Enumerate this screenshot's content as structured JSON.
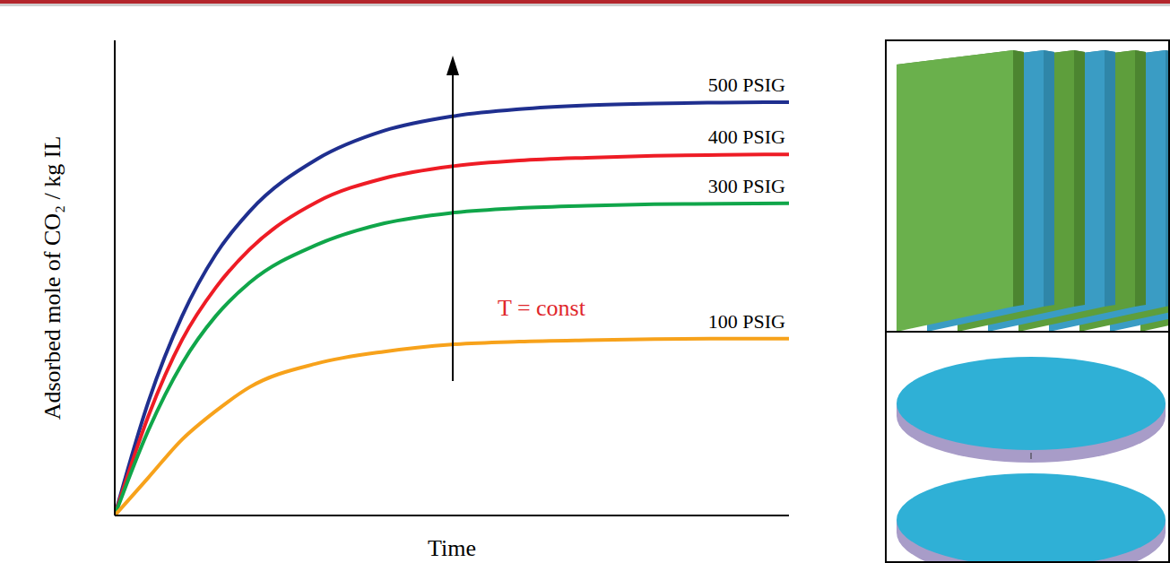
{
  "chart_data": {
    "type": "line",
    "x_label": "Time",
    "y_label": "Adsorbed mole of CO₂ / kg IL",
    "x": [
      0,
      0.5,
      1,
      1.5,
      2,
      3,
      4,
      5,
      6,
      7,
      8,
      9,
      10
    ],
    "series": [
      {
        "name": "500 PSIG",
        "color": "#1f2f8f",
        "values": [
          0,
          2.4,
          4.2,
          5.5,
          6.4,
          7.5,
          8.1,
          8.4,
          8.55,
          8.63,
          8.67,
          8.69,
          8.7
        ]
      },
      {
        "name": "400 PSIG",
        "color": "#ee1c25",
        "values": [
          0,
          2.1,
          3.7,
          4.8,
          5.6,
          6.6,
          7.1,
          7.35,
          7.47,
          7.53,
          7.57,
          7.59,
          7.6
        ]
      },
      {
        "name": "300 PSIG",
        "color": "#10a64a",
        "values": [
          0,
          1.8,
          3.2,
          4.2,
          4.9,
          5.7,
          6.15,
          6.37,
          6.47,
          6.52,
          6.55,
          6.56,
          6.57
        ]
      },
      {
        "name": "100 PSIG",
        "color": "#f7a21b",
        "values": [
          0,
          0.8,
          1.6,
          2.2,
          2.7,
          3.2,
          3.45,
          3.6,
          3.66,
          3.69,
          3.71,
          3.72,
          3.72
        ]
      }
    ],
    "xlim": [
      0,
      10
    ],
    "ylim": [
      0,
      10
    ],
    "tick_labels": false,
    "grid": false,
    "annotations": [
      "T = const"
    ]
  }
}
